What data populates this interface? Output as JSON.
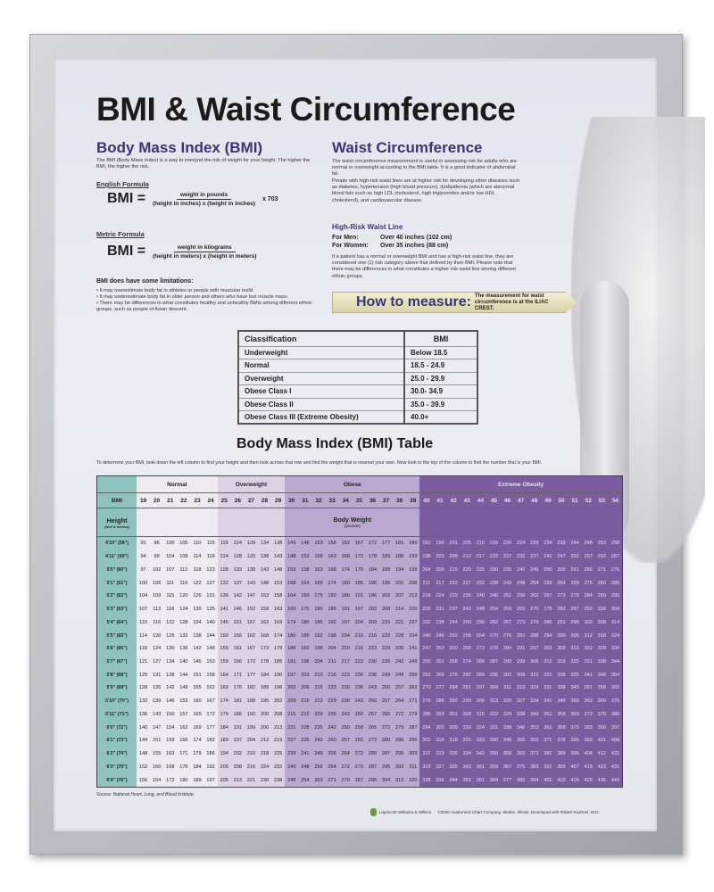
{
  "title": "BMI & Waist Circumference",
  "bmi_section": {
    "heading": "Body Mass Index (BMI)",
    "intro": "The BMI (Body Mass Index) is a way to interpret the risk of weight for your height. The higher the BMI, the higher the risk.",
    "english_label": "English Formula",
    "metric_label": "Metric Formula",
    "lhs": "BMI =",
    "english_num": "weight in pounds",
    "english_den": "(height in inches) x (height in inches)",
    "english_mult": "x 703",
    "metric_num": "weight in kilograms",
    "metric_den": "(height in meters) x (height in meters)",
    "limits_heading": "BMI does have some limitations:",
    "limits": [
      "• It may overestimate body fat in athletes or people with muscular build.",
      "• It may underestimate body fat in older person and others who have lost muscle mass.",
      "• There may be differences in what constitutes healthy and unhealthy BMIs among different ethnic groups, such as people of Asian descent."
    ]
  },
  "waist_section": {
    "heading": "Waist Circumference",
    "p1": "The waist circumference measurement is useful in assessing risk for adults who are normal or overweight according to the BMI table. It is a good indicator of abdominal fat.",
    "p2": "People with high-risk waist lines are at higher risk for developing other diseases such as diabetes, hypertension (high blood pressure), dyslipidemia (which are abnormal blood fats such as high LDL cholesterol, high triglycerides and/or low HDL cholesterol), and cardiovascular disease.",
    "risk_heading": "High-Risk Waist Line",
    "men_label": "For Men:",
    "men_value": "Over 40 inches (102 cm)",
    "women_label": "For Women:",
    "women_value": "Over 35 inches (88 cm)",
    "p3": "If a patient has a normal or overweight BMI and has a high-risk waist line, they are considered one (1) risk category above that defined by their BMI. Please note that there may be differences in what constitutes a higher risk waist line among different ethnic groups.",
    "measure_title": "How to measure:",
    "measure_note": "The measurement for waist circumference is at the ILIAC CREST."
  },
  "classification": {
    "headers": [
      "Classification",
      "BMI"
    ],
    "rows": [
      [
        "Underweight",
        "Below 18.5"
      ],
      [
        "Normal",
        "18.5 - 24.9"
      ],
      [
        "Overweight",
        "25.0 - 29.9"
      ],
      [
        "Obese Class I",
        "30.0- 34.9"
      ],
      [
        "Obese Class II",
        "35.0 - 39.9"
      ],
      [
        "Obese Class III (Extreme Obesity)",
        "40.0+"
      ]
    ]
  },
  "bmi_table": {
    "title": "Body Mass Index (BMI) Table",
    "instructions": "To determine your BMI, look down the left column to find your height and then look across that row and find the weight that is nearest your own. Now look to the top of the column to find the number that is your BMI.",
    "categories": [
      {
        "label": "Normal",
        "span": 6,
        "color": "#efe9f2"
      },
      {
        "label": "Overweight",
        "span": 5,
        "color": "#ddd1e6"
      },
      {
        "label": "Obese",
        "span": 10,
        "color": "#bba8d1"
      },
      {
        "label": "Extreme Obesity",
        "span": 15,
        "color": "#7b5c9f"
      }
    ],
    "bmi_label": "BMI",
    "bmi_values": [
      19,
      20,
      21,
      22,
      23,
      24,
      25,
      26,
      27,
      28,
      29,
      30,
      31,
      32,
      33,
      34,
      35,
      36,
      37,
      38,
      39,
      40,
      41,
      42,
      43,
      44,
      45,
      46,
      47,
      48,
      49,
      50,
      51,
      52,
      53,
      54
    ],
    "height_label": "Height",
    "height_sub": "(feet & inches)",
    "weight_label": "Body Weight",
    "weight_sub": "(pounds)",
    "rows": [
      {
        "h": "4'10\" (58\")",
        "w": [
          91,
          96,
          100,
          105,
          110,
          115,
          119,
          124,
          129,
          134,
          138,
          143,
          148,
          153,
          158,
          162,
          167,
          172,
          177,
          181,
          186,
          191,
          196,
          201,
          205,
          210,
          215,
          220,
          224,
          229,
          234,
          239,
          244,
          248,
          253,
          258
        ]
      },
      {
        "h": "4'11\" (59\")",
        "w": [
          94,
          99,
          104,
          109,
          114,
          119,
          124,
          128,
          133,
          138,
          143,
          148,
          153,
          158,
          163,
          168,
          173,
          178,
          183,
          188,
          193,
          198,
          203,
          208,
          212,
          217,
          222,
          227,
          232,
          237,
          242,
          247,
          252,
          257,
          262,
          267
        ]
      },
      {
        "h": "5'0\" (60\")",
        "w": [
          97,
          102,
          107,
          112,
          118,
          123,
          128,
          133,
          138,
          143,
          148,
          153,
          158,
          163,
          168,
          174,
          179,
          184,
          189,
          194,
          199,
          204,
          209,
          215,
          220,
          225,
          230,
          235,
          240,
          245,
          250,
          255,
          261,
          266,
          271,
          276
        ]
      },
      {
        "h": "5'1\" (61\")",
        "w": [
          100,
          106,
          111,
          116,
          122,
          127,
          132,
          137,
          143,
          148,
          153,
          158,
          164,
          169,
          174,
          180,
          185,
          190,
          195,
          201,
          206,
          211,
          217,
          222,
          227,
          232,
          238,
          243,
          248,
          254,
          259,
          264,
          269,
          275,
          280,
          285
        ]
      },
      {
        "h": "5'2\" (62\")",
        "w": [
          104,
          109,
          115,
          120,
          126,
          131,
          136,
          142,
          147,
          153,
          158,
          164,
          169,
          175,
          180,
          186,
          191,
          196,
          202,
          207,
          213,
          218,
          224,
          229,
          235,
          240,
          246,
          251,
          256,
          262,
          267,
          273,
          278,
          284,
          289,
          295
        ]
      },
      {
        "h": "5'3\" (63\")",
        "w": [
          107,
          113,
          118,
          124,
          130,
          135,
          141,
          146,
          152,
          158,
          163,
          169,
          175,
          180,
          186,
          191,
          197,
          203,
          208,
          214,
          220,
          225,
          231,
          237,
          242,
          248,
          254,
          259,
          265,
          270,
          278,
          282,
          287,
          293,
          299,
          304
        ]
      },
      {
        "h": "5'4\" (64\")",
        "w": [
          110,
          116,
          122,
          128,
          134,
          140,
          145,
          151,
          157,
          163,
          169,
          174,
          180,
          186,
          192,
          197,
          204,
          209,
          215,
          221,
          227,
          232,
          238,
          244,
          250,
          256,
          262,
          267,
          273,
          279,
          285,
          291,
          296,
          302,
          308,
          314
        ]
      },
      {
        "h": "5'5\" (65\")",
        "w": [
          114,
          120,
          126,
          132,
          138,
          144,
          150,
          156,
          162,
          168,
          174,
          180,
          186,
          192,
          198,
          204,
          210,
          216,
          222,
          228,
          234,
          240,
          246,
          252,
          258,
          264,
          270,
          276,
          282,
          288,
          294,
          300,
          306,
          312,
          318,
          324
        ]
      },
      {
        "h": "5'6\" (66\")",
        "w": [
          118,
          124,
          130,
          136,
          142,
          148,
          155,
          161,
          167,
          173,
          179,
          186,
          192,
          198,
          204,
          210,
          216,
          223,
          229,
          235,
          241,
          247,
          253,
          260,
          266,
          272,
          278,
          284,
          291,
          297,
          303,
          309,
          315,
          322,
          328,
          334
        ]
      },
      {
        "h": "5'7\" (67\")",
        "w": [
          121,
          127,
          134,
          140,
          146,
          153,
          159,
          166,
          172,
          178,
          185,
          191,
          198,
          204,
          211,
          217,
          223,
          230,
          236,
          242,
          249,
          255,
          261,
          268,
          274,
          280,
          287,
          293,
          299,
          306,
          312,
          319,
          325,
          331,
          338,
          344
        ]
      },
      {
        "h": "5'8\" (68\")",
        "w": [
          125,
          131,
          138,
          144,
          151,
          158,
          164,
          171,
          177,
          184,
          190,
          197,
          203,
          210,
          216,
          223,
          230,
          236,
          243,
          249,
          256,
          262,
          269,
          276,
          282,
          289,
          295,
          302,
          308,
          315,
          322,
          328,
          335,
          341,
          348,
          354
        ]
      },
      {
        "h": "5'9\" (69\")",
        "w": [
          128,
          135,
          142,
          149,
          155,
          162,
          169,
          176,
          182,
          189,
          196,
          203,
          209,
          216,
          223,
          230,
          236,
          243,
          250,
          257,
          263,
          270,
          277,
          284,
          291,
          297,
          304,
          311,
          318,
          324,
          331,
          338,
          345,
          351,
          358,
          365
        ]
      },
      {
        "h": "5'10\" (70\")",
        "w": [
          132,
          139,
          146,
          153,
          160,
          167,
          174,
          181,
          188,
          195,
          202,
          209,
          216,
          222,
          229,
          236,
          243,
          250,
          257,
          264,
          271,
          278,
          285,
          292,
          299,
          306,
          313,
          320,
          327,
          334,
          341,
          348,
          355,
          362,
          369,
          376
        ]
      },
      {
        "h": "5'11\" (71\")",
        "w": [
          136,
          143,
          150,
          157,
          165,
          172,
          179,
          186,
          193,
          200,
          208,
          215,
          222,
          229,
          236,
          243,
          250,
          257,
          265,
          272,
          279,
          286,
          293,
          301,
          308,
          315,
          322,
          329,
          338,
          343,
          351,
          358,
          365,
          372,
          379,
          386
        ]
      },
      {
        "h": "6'0\" (72\")",
        "w": [
          140,
          147,
          154,
          162,
          169,
          177,
          184,
          191,
          199,
          206,
          213,
          221,
          228,
          235,
          242,
          250,
          258,
          265,
          272,
          279,
          287,
          294,
          302,
          309,
          316,
          324,
          331,
          338,
          346,
          353,
          361,
          368,
          375,
          383,
          390,
          397
        ]
      },
      {
        "h": "6'1\" (73\")",
        "w": [
          144,
          151,
          159,
          166,
          174,
          182,
          189,
          197,
          204,
          212,
          219,
          227,
          235,
          242,
          250,
          257,
          265,
          272,
          280,
          288,
          295,
          302,
          310,
          318,
          325,
          333,
          340,
          348,
          355,
          363,
          371,
          378,
          386,
          393,
          401,
          408
        ]
      },
      {
        "h": "6'2\" (74\")",
        "w": [
          148,
          155,
          163,
          171,
          179,
          186,
          194,
          202,
          210,
          218,
          225,
          233,
          241,
          249,
          256,
          264,
          272,
          280,
          287,
          295,
          303,
          311,
          319,
          326,
          334,
          342,
          350,
          358,
          365,
          373,
          381,
          389,
          396,
          404,
          412,
          420
        ]
      },
      {
        "h": "6'3\" (75\")",
        "w": [
          152,
          160,
          168,
          176,
          184,
          192,
          200,
          208,
          216,
          224,
          232,
          240,
          248,
          256,
          264,
          272,
          279,
          287,
          295,
          303,
          311,
          319,
          327,
          335,
          343,
          351,
          359,
          367,
          375,
          383,
          391,
          399,
          407,
          415,
          423,
          431
        ]
      },
      {
        "h": "6'4\" (76\")",
        "w": [
          156,
          164,
          172,
          180,
          189,
          197,
          205,
          213,
          221,
          230,
          238,
          246,
          254,
          263,
          271,
          279,
          287,
          295,
          304,
          312,
          320,
          328,
          336,
          344,
          353,
          361,
          369,
          377,
          385,
          394,
          402,
          410,
          418,
          426,
          435,
          443
        ]
      }
    ],
    "source": "Source: National Heart, Lung, and Blood Institute."
  },
  "footer": {
    "publisher": "Lippincott Williams & Wilkins",
    "copyright": "©2006 Anatomical Chart Company, Skokie, Illinois. Developed with Robert Kushner, M.D."
  },
  "colors": {
    "heading": "#3b3673",
    "height_column": "#8ec3bd",
    "normal": "#efe9f2",
    "overweight": "#ddd1e6",
    "obese": "#bba8d1",
    "extreme": "#7b5c9f"
  }
}
